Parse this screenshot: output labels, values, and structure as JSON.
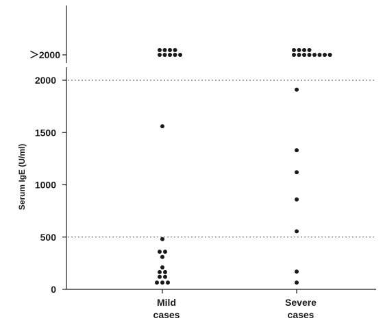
{
  "chart_data": {
    "type": "scatter",
    "title": "",
    "ylabel": "Serum IgE (U/ml)",
    "xlabel": "",
    "categories": [
      "Mild cases",
      "Severe cases"
    ],
    "category_lines": [
      [
        "Mild",
        "cases"
      ],
      [
        "Severe",
        "cases"
      ]
    ],
    "ylim": [
      0,
      2000
    ],
    "yticks": [
      0,
      500,
      1000,
      1500,
      2000
    ],
    "reference_lines": [
      500,
      2000
    ],
    "grid": false,
    "overflow_label": "＞2000",
    "series": [
      {
        "category": "Mild cases",
        "values": [
          1560,
          480,
          360,
          360,
          310,
          210,
          165,
          165,
          120,
          120,
          65,
          65,
          65
        ],
        "overflow_count": 9
      },
      {
        "category": "Severe cases",
        "values": [
          1910,
          1330,
          1120,
          860,
          555,
          170,
          65
        ],
        "overflow_count": 12
      }
    ]
  }
}
